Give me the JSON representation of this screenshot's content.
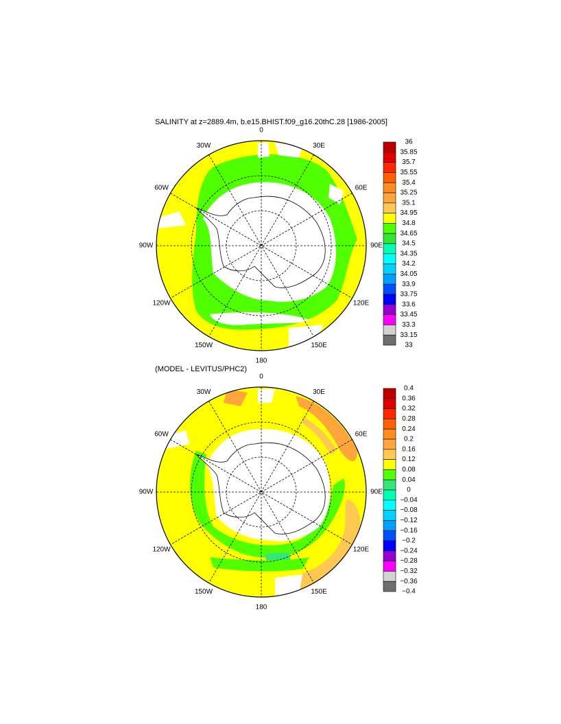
{
  "panels": [
    {
      "title": "SALINITY at z=2889.4m, b.e15.BHIST.f09_g16.20thC.28 [1986-2005]",
      "longitude_labels": [
        "0",
        "30E",
        "60E",
        "90E",
        "120E",
        "150E",
        "180",
        "150W",
        "120W",
        "90W",
        "60W",
        "30W"
      ],
      "colorbar": {
        "labels": [
          "36",
          "35.85",
          "35.7",
          "35.55",
          "35.4",
          "35.25",
          "35.1",
          "34.95",
          "34.8",
          "34.65",
          "34.5",
          "34.35",
          "34.2",
          "34.05",
          "33.9",
          "33.75",
          "33.6",
          "33.45",
          "33.3",
          "33.15",
          "33"
        ],
        "colors": [
          "#c00000",
          "#e00000",
          "#ff2800",
          "#ff6000",
          "#ff8c1e",
          "#ffa53c",
          "#ffc850",
          "#ffff00",
          "#50ff00",
          "#32e632",
          "#00ffb4",
          "#00ffff",
          "#00d2ff",
          "#00a0ff",
          "#0050ff",
          "#0000ff",
          "#9600d2",
          "#ff00ff",
          "#d2d2d2",
          "#6e6e6e"
        ]
      }
    },
    {
      "title": "(MODEL - LEVITUS/PHC2)",
      "longitude_labels": [
        "0",
        "30E",
        "60E",
        "90E",
        "120E",
        "150E",
        "180",
        "150W",
        "120W",
        "90W",
        "60W",
        "30W"
      ],
      "colorbar": {
        "labels": [
          "0.4",
          "0.36",
          "0.32",
          "0.28",
          "0.24",
          "0.2",
          "0.16",
          "0.12",
          "0.08",
          "0.04",
          "0",
          "−0.04",
          "−0.08",
          "−0.12",
          "−0.16",
          "−0.2",
          "−0.24",
          "−0.28",
          "−0.32",
          "−0.36",
          "−0.4"
        ],
        "colors": [
          "#c00000",
          "#e00000",
          "#ff2800",
          "#ff6000",
          "#ff8c1e",
          "#ffa53c",
          "#ffc850",
          "#ffff00",
          "#50ff00",
          "#32e678",
          "#00ffb4",
          "#00ffff",
          "#00d2ff",
          "#00a0ff",
          "#0050ff",
          "#0000ff",
          "#9600d2",
          "#ff00ff",
          "#d2d2d2",
          "#6e6e6e"
        ]
      }
    }
  ]
}
